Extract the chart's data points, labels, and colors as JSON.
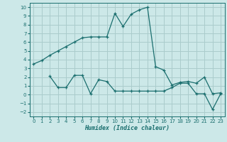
{
  "xlabel": "Humidex (Indice chaleur)",
  "background_color": "#cce8e8",
  "grid_color": "#aacccc",
  "line_color": "#1a6e6e",
  "xlim": [
    -0.5,
    23.5
  ],
  "ylim": [
    -2.5,
    10.5
  ],
  "xticks": [
    0,
    1,
    2,
    3,
    4,
    5,
    6,
    7,
    8,
    9,
    10,
    11,
    12,
    13,
    14,
    15,
    16,
    17,
    18,
    19,
    20,
    21,
    22,
    23
  ],
  "yticks": [
    -2,
    -1,
    0,
    1,
    2,
    3,
    4,
    5,
    6,
    7,
    8,
    9,
    10
  ],
  "series1_x": [
    0,
    1,
    2,
    3,
    4,
    5,
    6,
    7,
    8,
    9,
    10,
    11,
    12,
    13,
    14,
    15,
    16,
    17,
    18,
    19,
    20,
    21,
    22,
    23
  ],
  "series1_y": [
    3.5,
    3.9,
    4.5,
    5.0,
    5.5,
    6.0,
    6.5,
    6.6,
    6.6,
    6.6,
    9.3,
    7.8,
    9.2,
    9.7,
    10.0,
    3.2,
    2.8,
    1.1,
    1.4,
    1.5,
    1.3,
    2.0,
    0.1,
    0.2
  ],
  "series2_x": [
    2,
    3,
    4,
    5,
    6,
    7,
    8,
    9,
    10,
    11,
    12,
    13,
    14,
    15,
    16,
    17,
    18,
    19,
    20,
    21,
    22,
    23
  ],
  "series2_y": [
    2.1,
    0.8,
    0.8,
    2.2,
    2.2,
    0.1,
    1.7,
    1.5,
    0.4,
    0.4,
    0.4,
    0.4,
    0.4,
    0.4,
    0.4,
    0.8,
    1.3,
    1.3,
    0.1,
    0.1,
    -1.7,
    0.1
  ]
}
